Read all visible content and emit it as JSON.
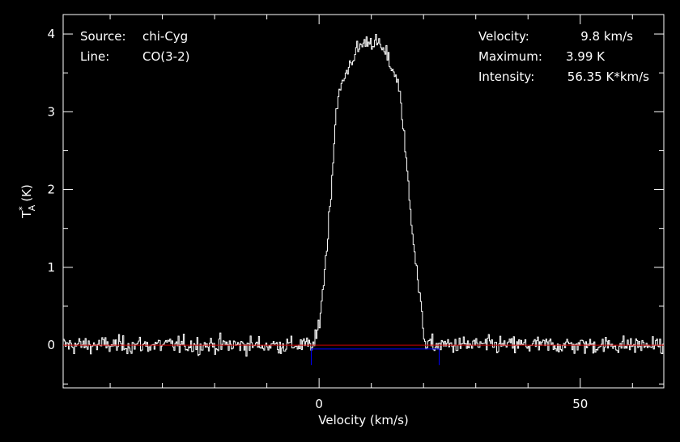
{
  "chart_data": {
    "type": "line",
    "title": "",
    "xlabel": "Velocity (km/s)",
    "ylabel_main": "T",
    "ylabel_sub": "A",
    "ylabel_sup": "*",
    "ylabel_unit": "(K)",
    "xlim": [
      -49,
      66
    ],
    "ylim": [
      -0.55,
      4.25
    ],
    "xticks": [
      0,
      50
    ],
    "xtick_labels": [
      "0",
      "50"
    ],
    "yticks": [
      0,
      1,
      2,
      3,
      4
    ],
    "ytick_labels": [
      "0",
      "1",
      "2",
      "3",
      "4"
    ],
    "grid": false,
    "series": [
      {
        "style": "histogram",
        "color": "#ffffff",
        "line": {
          "center": 9.8,
          "peak": 3.99,
          "rise_start": -1.0,
          "rise_end": 3.5,
          "fall_start": 15.5,
          "fall_end": 20.5,
          "noise_rms": 0.08,
          "channel_width": 0.2
        }
      }
    ],
    "baseline": {
      "y": 0.0,
      "color": "#cc0000"
    },
    "integration_window": {
      "x": [
        -1.5,
        23.0
      ],
      "y": -0.05,
      "color": "#0000ff"
    },
    "annotations": {
      "left": [
        {
          "key": "Source:",
          "value": "chi-Cyg"
        },
        {
          "key": "Line:",
          "value": "CO(3-2)"
        }
      ],
      "right": [
        {
          "key": "Velocity:",
          "value": "9.8 km/s"
        },
        {
          "key": "Maximum:",
          "value": "3.99 K"
        },
        {
          "key": "Intensity:",
          "value": "56.35 K*km/s"
        }
      ]
    }
  }
}
